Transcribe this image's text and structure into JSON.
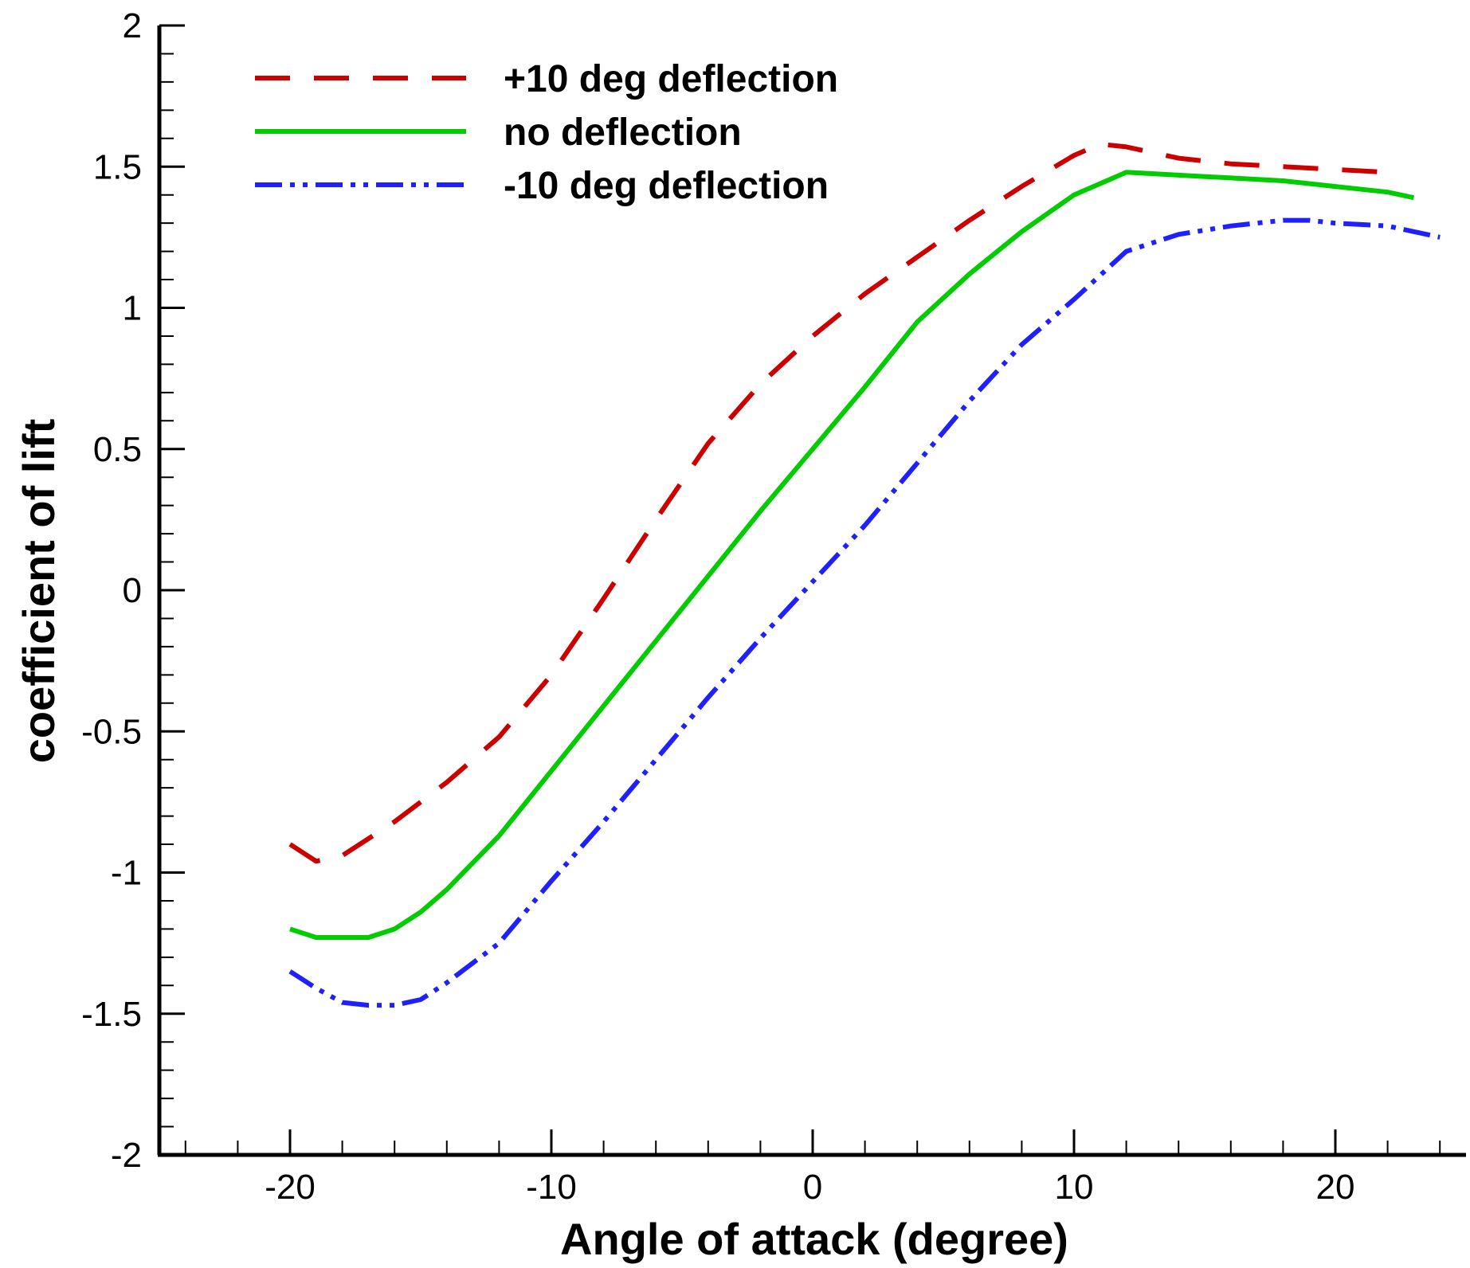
{
  "chart_data": {
    "type": "line",
    "title": "",
    "xlabel": "Angle of attack (degree)",
    "ylabel": "coefficient of lift",
    "xlim": [
      -25,
      25
    ],
    "ylim": [
      -2,
      2
    ],
    "xticks": [
      -20,
      -10,
      0,
      10,
      20
    ],
    "xtick_labels": [
      "-20",
      "-10",
      "0",
      "10",
      "20"
    ],
    "yticks": [
      -2,
      -1.5,
      -1,
      -0.5,
      0,
      0.5,
      1,
      1.5,
      2
    ],
    "ytick_labels": [
      "-2",
      "-1.5",
      "-1",
      "-0.5",
      "0",
      "0.5",
      "1",
      "1.5",
      "2"
    ],
    "x_minor_step": 2,
    "y_minor_step": 0.1,
    "grid": false,
    "legend_position": "top-left",
    "series": [
      {
        "name": "+10 deg deflection",
        "color": "#cc0000",
        "dash": "dashed",
        "x": [
          -20,
          -19,
          -18,
          -16,
          -14,
          -12,
          -10,
          -8,
          -6,
          -4,
          -2,
          0,
          2,
          4,
          6,
          8,
          10,
          11,
          12,
          14,
          16,
          18,
          20,
          22
        ],
        "y": [
          -0.9,
          -0.96,
          -0.94,
          -0.82,
          -0.68,
          -0.52,
          -0.3,
          -0.03,
          0.25,
          0.52,
          0.73,
          0.9,
          1.05,
          1.18,
          1.31,
          1.43,
          1.54,
          1.58,
          1.57,
          1.53,
          1.51,
          1.5,
          1.49,
          1.48
        ]
      },
      {
        "name": "no deflection",
        "color": "#00cc00",
        "dash": "solid",
        "x": [
          -20,
          -19,
          -18,
          -17,
          -16,
          -15,
          -14,
          -12,
          -10,
          -8,
          -6,
          -4,
          -2,
          0,
          2,
          4,
          6,
          8,
          10,
          12,
          14,
          16,
          18,
          20,
          22,
          23
        ],
        "y": [
          -1.2,
          -1.23,
          -1.23,
          -1.23,
          -1.2,
          -1.14,
          -1.06,
          -0.87,
          -0.64,
          -0.41,
          -0.18,
          0.05,
          0.28,
          0.5,
          0.72,
          0.95,
          1.12,
          1.27,
          1.4,
          1.48,
          1.47,
          1.46,
          1.45,
          1.43,
          1.41,
          1.39
        ]
      },
      {
        "name": "-10 deg deflection",
        "color": "#2020ff",
        "dash": "dash-dot-dot",
        "x": [
          -20,
          -19,
          -18,
          -17,
          -16,
          -15,
          -14,
          -12,
          -10,
          -8,
          -6,
          -4,
          -2,
          0,
          2,
          4,
          6,
          8,
          10,
          12,
          14,
          16,
          18,
          19,
          20,
          22,
          24
        ],
        "y": [
          -1.35,
          -1.41,
          -1.46,
          -1.47,
          -1.47,
          -1.45,
          -1.39,
          -1.25,
          -1.03,
          -0.82,
          -0.6,
          -0.38,
          -0.17,
          0.03,
          0.23,
          0.45,
          0.67,
          0.87,
          1.03,
          1.2,
          1.26,
          1.29,
          1.31,
          1.31,
          1.3,
          1.29,
          1.25
        ]
      }
    ]
  }
}
